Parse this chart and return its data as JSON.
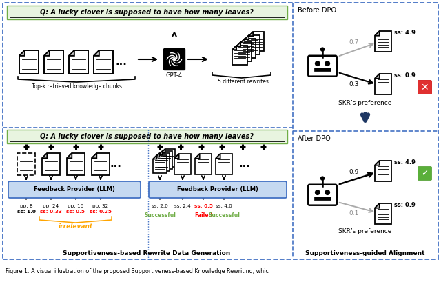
{
  "question_text": "Q: A lucky clover is supposed to have how many leaves?",
  "left_panel_title": "Supportiveness-based Rewrite Data Generation",
  "right_panel_title": "Supportiveness-guided Alignment",
  "before_dpo_label": "Before DPO",
  "after_dpo_label": "After DPO",
  "skr_preference_label": "SKR’s preference",
  "gpt4_label": "GPT-4",
  "five_rewrites_label": "5 different rewrites",
  "topk_label": "Top-k retrieved knowledge chunks",
  "feedback_llm_label": "Feedback Provider (LLM)",
  "irrelevant_label": "irrelevant",
  "caption": "Figure 1: A visual illustration of the proposed Supportiveness-based Knowledge Rewriting, whic",
  "bg_color": "#ffffff",
  "green_bg": "#e8f4e0",
  "green_border": "#70ad47",
  "blue_border": "#4472c4",
  "dark_blue": "#1f3864",
  "feedback_bg": "#c5d9f1",
  "feedback_border": "#4472c4",
  "green_color": "#70ad47",
  "red_color": "#ff0000",
  "orange_color": "#ffa500",
  "gray_color": "#999999",
  "figsize": [
    6.4,
    4.09
  ],
  "dpi": 100
}
